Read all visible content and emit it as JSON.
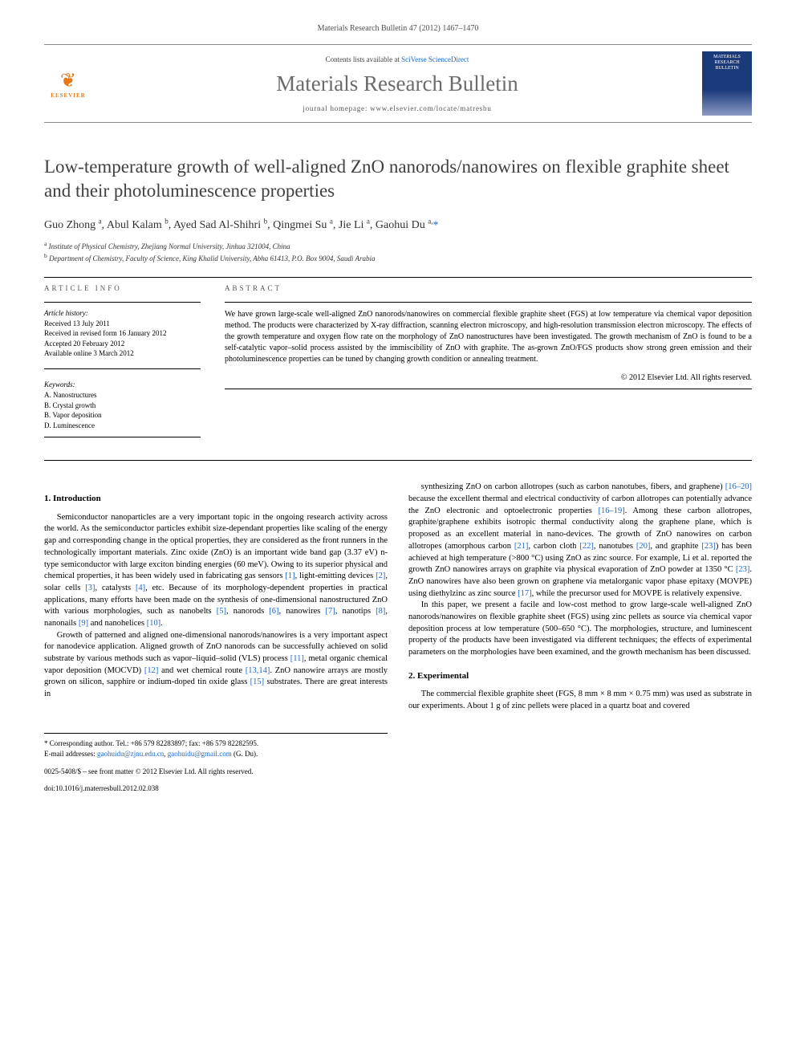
{
  "header": {
    "citation": "Materials Research Bulletin 47 (2012) 1467–1470",
    "contents_prefix": "Contents lists available at ",
    "contents_link": "SciVerse ScienceDirect",
    "journal_title": "Materials Research Bulletin",
    "homepage_label": "journal homepage: www.elsevier.com/locate/matresbu",
    "publisher": "ELSEVIER",
    "cover_text": "MATERIALS RESEARCH BULLETIN"
  },
  "article": {
    "title": "Low-temperature growth of well-aligned ZnO nanorods/nanowires on flexible graphite sheet and their photoluminescence properties",
    "authors_html": "Guo Zhong <sup>a</sup>, Abul Kalam <sup>b</sup>, Ayed Sad Al-Shihri <sup>b</sup>, Qingmei Su <sup>a</sup>, Jie Li <sup>a</sup>, Gaohui Du <sup>a,</sup>",
    "corr_mark": "*",
    "affiliations": {
      "a": "Institute of Physical Chemistry, Zhejiang Normal University, Jinhua 321004, China",
      "b": "Department of Chemistry, Faculty of Science, King Khalid University, Abha 61413, P.O. Box 9004, Saudi Arabia"
    }
  },
  "info": {
    "label": "ARTICLE INFO",
    "history_head": "Article history:",
    "history": [
      "Received 13 July 2011",
      "Received in revised form 16 January 2012",
      "Accepted 20 February 2012",
      "Available online 3 March 2012"
    ],
    "keywords_head": "Keywords:",
    "keywords": [
      "A. Nanostructures",
      "B. Crystal growth",
      "B. Vapor deposition",
      "D. Luminescence"
    ]
  },
  "abstract": {
    "label": "ABSTRACT",
    "text": "We have grown large-scale well-aligned ZnO nanorods/nanowires on commercial flexible graphite sheet (FGS) at low temperature via chemical vapor deposition method. The products were characterized by X-ray diffraction, scanning electron microscopy, and high-resolution transmission electron microscopy. The effects of the growth temperature and oxygen flow rate on the morphology of ZnO nanostructures have been investigated. The growth mechanism of ZnO is found to be a self-catalytic vapor–solid process assisted by the immiscibility of ZnO with graphite. The as-grown ZnO/FGS products show strong green emission and their photoluminescence properties can be tuned by changing growth condition or annealing treatment.",
    "copyright": "© 2012 Elsevier Ltd. All rights reserved."
  },
  "sections": {
    "intro_head": "1. Introduction",
    "intro_p1": "Semiconductor nanoparticles are a very important topic in the ongoing research activity across the world. As the semiconductor particles exhibit size-dependant properties like scaling of the energy gap and corresponding change in the optical properties, they are considered as the front runners in the technologically important materials. Zinc oxide (ZnO) is an important wide band gap (3.37 eV) n-type semiconductor with large exciton binding energies (60 meV). Owing to its superior physical and chemical properties, it has been widely used in fabricating gas sensors [1], light-emitting devices [2], solar cells [3], catalysts [4], etc. Because of its morphology-dependent properties in practical applications, many efforts have been made on the synthesis of one-dimensional nanostructured ZnO with various morphologies, such as nanobelts [5], nanorods [6], nanowires [7], nanotips [8], nanonails [9] and nanohelices [10].",
    "intro_p2": "Growth of patterned and aligned one-dimensional nanorods/nanowires is a very important aspect for nanodevice application. Aligned growth of ZnO nanorods can be successfully achieved on solid substrate by various methods such as vapor–liquid–solid (VLS) process [11], metal organic chemical vapor deposition (MOCVD) [12] and wet chemical route [13,14]. ZnO nanowire arrays are mostly grown on silicon, sapphire or indium-doped tin oxide glass [15] substrates. There are great interests in",
    "intro_p3": "synthesizing ZnO on carbon allotropes (such as carbon nanotubes, fibers, and graphene) [16–20] because the excellent thermal and electrical conductivity of carbon allotropes can potentially advance the ZnO electronic and optoelectronic properties [16–19]. Among these carbon allotropes, graphite/graphene exhibits isotropic thermal conductivity along the graphene plane, which is proposed as an excellent material in nano-devices. The growth of ZnO nanowires on carbon allotropes (amorphous carbon [21], carbon cloth [22], nanotubes [20], and graphite [23]) has been achieved at high temperature (>800 °C) using ZnO as zinc source. For example, Li et al. reported the growth ZnO nanowires arrays on graphite via physical evaporation of ZnO powder at 1350 °C [23]. ZnO nanowires have also been grown on graphene via metalorganic vapor phase epitaxy (MOVPE) using diethylzinc as zinc source [17], while the precursor used for MOVPE is relatively expensive.",
    "intro_p4": "In this paper, we present a facile and low-cost method to grow large-scale well-aligned ZnO nanorods/nanowires on flexible graphite sheet (FGS) using zinc pellets as source via chemical vapor deposition process at low temperature (500–650 °C). The morphologies, structure, and luminescent property of the products have been investigated via different techniques; the effects of experimental parameters on the morphologies have been examined, and the growth mechanism has been discussed.",
    "exp_head": "2. Experimental",
    "exp_p1": "The commercial flexible graphite sheet (FGS, 8 mm × 8 mm × 0.75 mm) was used as substrate in our experiments. About 1 g of zinc pellets were placed in a quartz boat and covered"
  },
  "footer": {
    "corr_label": "* Corresponding author. Tel.: +86 579 82283897; fax: +86 579 82282595.",
    "email_label": "E-mail addresses:",
    "email1": "gaohuidu@zjnu.edu.cn",
    "email2": "gaohuidu@gmail.com",
    "email_owner": "(G. Du).",
    "issn_line": "0025-5408/$ – see front matter © 2012 Elsevier Ltd. All rights reserved.",
    "doi_line": "doi:10.1016/j.materresbull.2012.02.038"
  },
  "colors": {
    "link": "#1b67c9",
    "elsevier": "#e67817",
    "title_gray": "#404040",
    "journal_gray": "#6b6b6b"
  }
}
